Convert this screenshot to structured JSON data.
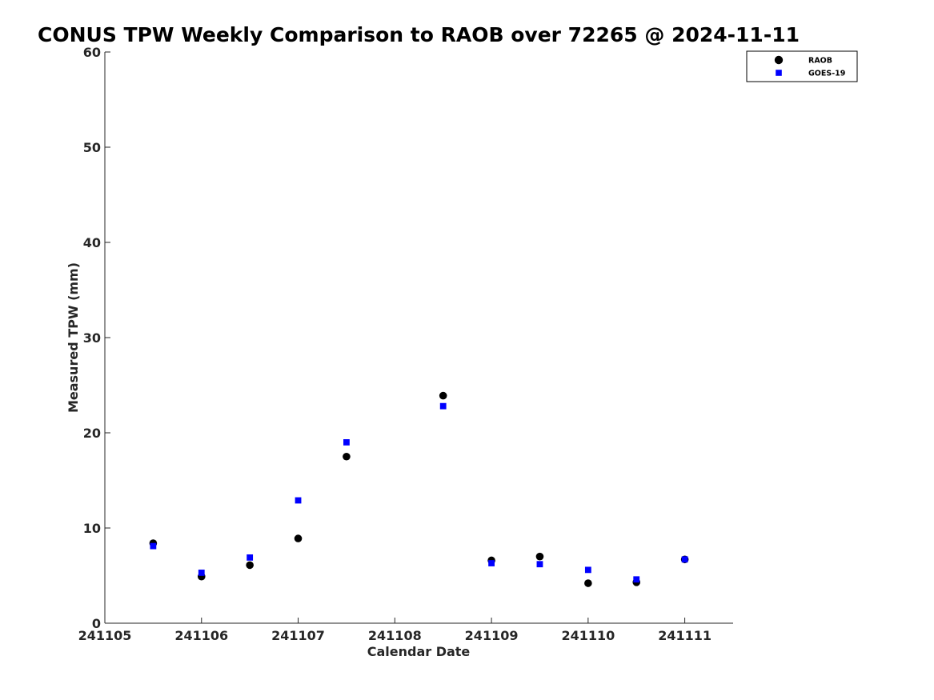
{
  "chart_data": {
    "type": "scatter",
    "title": "CONUS TPW Weekly Comparison to RAOB over 72265 @ 2024-11-11",
    "xlabel": "Calendar Date",
    "ylabel": "Measured TPW (mm)",
    "xlim": [
      241105,
      241111.5
    ],
    "ylim": [
      0,
      60
    ],
    "x_ticks": [
      241105,
      241106,
      241107,
      241108,
      241109,
      241110,
      241111
    ],
    "x_tick_labels": [
      "241105",
      "241106",
      "241107",
      "241108",
      "241109",
      "241110",
      "241111"
    ],
    "y_ticks": [
      0,
      10,
      20,
      30,
      40,
      50,
      60
    ],
    "y_tick_labels": [
      "0",
      "10",
      "20",
      "30",
      "40",
      "50",
      "60"
    ],
    "grid": false,
    "legend_position": "top-right",
    "series": [
      {
        "name": "RAOB",
        "marker": "circle",
        "color": "#000000",
        "x": [
          241105.5,
          241106,
          241106.5,
          241107,
          241107.5,
          241108.5,
          241109,
          241109.5,
          241110,
          241110.5,
          241111
        ],
        "y": [
          8.4,
          4.9,
          6.1,
          8.9,
          17.5,
          23.9,
          6.6,
          7.0,
          4.2,
          4.3,
          6.7
        ]
      },
      {
        "name": "GOES-19",
        "marker": "square",
        "color": "#0000ff",
        "x": [
          241105.5,
          241106,
          241106.5,
          241107,
          241107.5,
          241108.5,
          241109,
          241109.5,
          241110,
          241110.5,
          241111
        ],
        "y": [
          8.1,
          5.3,
          6.9,
          12.9,
          19.0,
          22.8,
          6.3,
          6.2,
          5.6,
          4.6,
          6.7
        ]
      }
    ]
  }
}
